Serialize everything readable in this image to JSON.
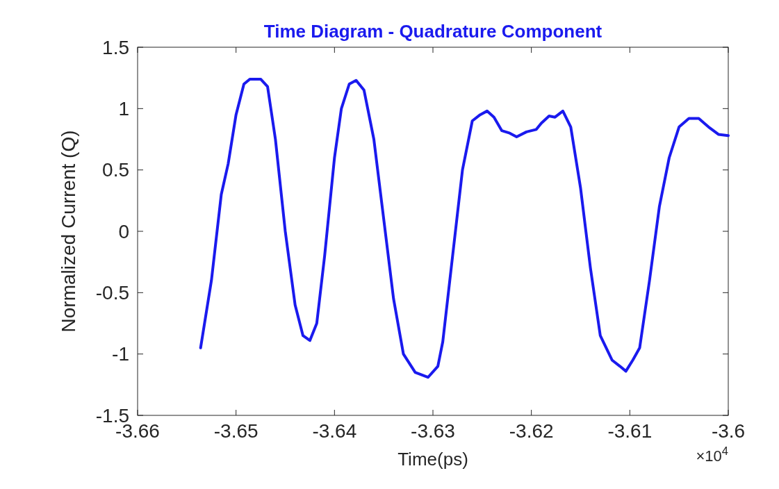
{
  "chart_data": {
    "type": "line",
    "title": "Time Diagram - Quadrature Component",
    "xlabel": "Time(ps)",
    "ylabel": "Normalized Current (Q)",
    "annotations": [
      "×10$^{4}$"
    ],
    "xlim": [
      -3.66,
      -3.6
    ],
    "xticks": [
      -3.66,
      -3.65,
      -3.64,
      -3.63,
      -3.62,
      -3.61,
      -3.6
    ],
    "ylim": [
      -1.5,
      1.5
    ],
    "yticks": [
      -1.5,
      -1,
      -0.5,
      0,
      0.5,
      1,
      1.5
    ],
    "grid": false,
    "marker": "none",
    "line_style": "solid",
    "series": [
      {
        "color": "#1a1aee",
        "x": [
          -3.6536,
          -3.6525,
          -3.6515,
          -3.6508,
          -3.65,
          -3.6492,
          -3.6486,
          -3.6475,
          -3.6468,
          -3.646,
          -3.645,
          -3.644,
          -3.6432,
          -3.6425,
          -3.6418,
          -3.641,
          -3.64,
          -3.6393,
          -3.6385,
          -3.6378,
          -3.637,
          -3.636,
          -3.635,
          -3.634,
          -3.633,
          -3.6318,
          -3.6305,
          -3.6295,
          -3.629,
          -3.628,
          -3.627,
          -3.626,
          -3.6252,
          -3.6245,
          -3.6238,
          -3.623,
          -3.6222,
          -3.6215,
          -3.6205,
          -3.6195,
          -3.619,
          -3.6182,
          -3.6176,
          -3.6168,
          -3.616,
          -3.615,
          -3.614,
          -3.613,
          -3.6118,
          -3.611,
          -3.6104,
          -3.6097,
          -3.609,
          -3.608,
          -3.607,
          -3.606,
          -3.605,
          -3.604,
          -3.603,
          -3.602,
          -3.601,
          -3.6
        ],
        "values": [
          -0.95,
          -0.4,
          0.3,
          0.55,
          0.95,
          1.2,
          1.24,
          1.24,
          1.18,
          0.75,
          0.0,
          -0.6,
          -0.85,
          -0.89,
          -0.75,
          -0.2,
          0.6,
          1.0,
          1.2,
          1.23,
          1.15,
          0.75,
          0.1,
          -0.55,
          -1.0,
          -1.15,
          -1.19,
          -1.1,
          -0.9,
          -0.2,
          0.5,
          0.9,
          0.95,
          0.98,
          0.93,
          0.82,
          0.8,
          0.77,
          0.81,
          0.83,
          0.88,
          0.94,
          0.93,
          0.98,
          0.85,
          0.35,
          -0.3,
          -0.85,
          -1.05,
          -1.1,
          -1.14,
          -1.05,
          -0.95,
          -0.4,
          0.2,
          0.6,
          0.85,
          0.92,
          0.92,
          0.85,
          0.79,
          0.78
        ]
      }
    ]
  }
}
